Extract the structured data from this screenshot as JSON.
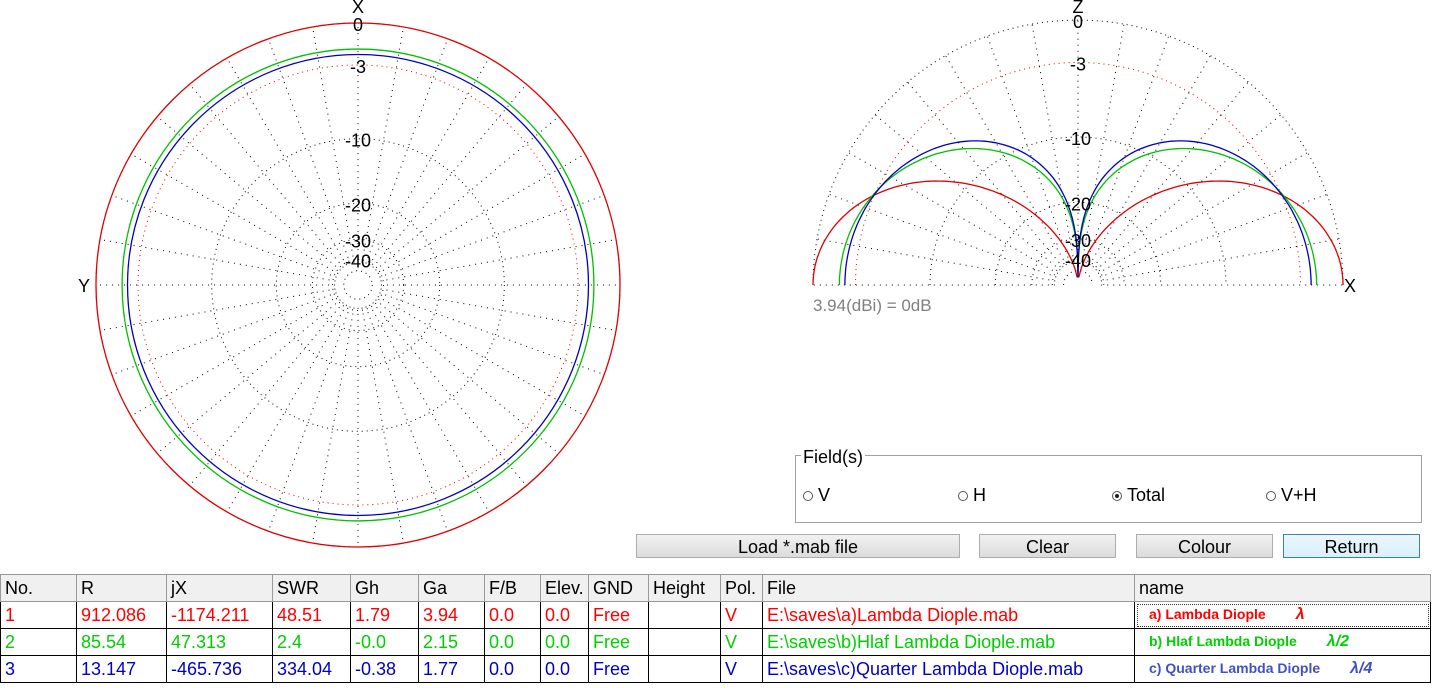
{
  "azimuth_plot": {
    "axis_top": "X",
    "axis_left": "Y",
    "rings": [
      "0",
      "-3",
      "-10",
      "-20",
      "-30",
      "-40"
    ]
  },
  "elevation_plot": {
    "axis_top": "Z",
    "axis_right": "X",
    "rings": [
      "0",
      "-3",
      "-10",
      "-20",
      "-30",
      "-40"
    ],
    "gain_note": "3.94(dBi) = 0dB"
  },
  "chart_data": [
    {
      "type": "polar",
      "series": [
        {
          "color": "#e00000",
          "relative_db": 0.0
        },
        {
          "color": "#00c000",
          "relative_db": -1.8
        },
        {
          "color": "#0000c0",
          "relative_db": -2.2
        }
      ]
    },
    {
      "type": "polar",
      "series": [
        {
          "color": "#e00000"
        },
        {
          "color": "#00c000"
        },
        {
          "color": "#0000c0"
        }
      ]
    }
  ],
  "fields": {
    "legend": "Field(s)",
    "options": [
      {
        "label": "V",
        "selected": false
      },
      {
        "label": "H",
        "selected": false
      },
      {
        "label": "Total",
        "selected": true
      },
      {
        "label": "V+H",
        "selected": false
      }
    ]
  },
  "buttons": {
    "load": "Load *.mab file",
    "clear": "Clear",
    "colour": "Colour",
    "return": "Return"
  },
  "table": {
    "headers": [
      "No.",
      "R",
      "jX",
      "SWR",
      "Gh",
      "Ga",
      "F/B",
      "Elev.",
      "GND",
      "Height",
      "Pol.",
      "File",
      "name"
    ],
    "rows": [
      {
        "no": "1",
        "r": "912.086",
        "jx": "-1174.211",
        "swr": "48.51",
        "gh": "1.79",
        "ga": "3.94",
        "fb": "0.0",
        "elev": "0.0",
        "gnd": "Free",
        "height": "",
        "pol": "V",
        "file": "E:\\saves\\a)Lambda Diople.mab",
        "name_label": "a)  Lambda Diople",
        "name_symbol": "λ",
        "color": "#ff0000"
      },
      {
        "no": "2",
        "r": "85.54",
        "jx": "47.313",
        "swr": "2.4",
        "gh": "-0.0",
        "ga": "2.15",
        "fb": "0.0",
        "elev": "0.0",
        "gnd": "Free",
        "height": "",
        "pol": "V",
        "file": "E:\\saves\\b)Hlaf Lambda Diople.mab",
        "name_label": "b)  Hlaf Lambda Diople",
        "name_symbol": "λ/2",
        "color": "#00d000"
      },
      {
        "no": "3",
        "r": "13.147",
        "jx": "-465.736",
        "swr": "334.04",
        "gh": "-0.38",
        "ga": "1.77",
        "fb": "0.0",
        "elev": "0.0",
        "gnd": "Free",
        "height": "",
        "pol": "V",
        "file": "E:\\saves\\c)Quarter Lambda Diople.mab",
        "name_label": "c)  Quarter Lambda Diople",
        "name_symbol": "λ/4",
        "color": "#0000c8"
      }
    ]
  }
}
